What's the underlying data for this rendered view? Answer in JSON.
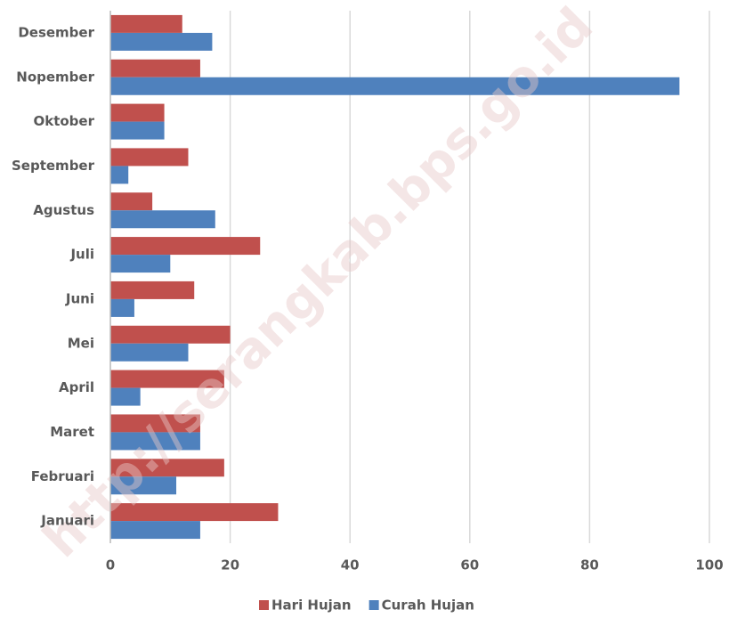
{
  "chart_data": {
    "type": "hbar",
    "categories": [
      "Januari",
      "Februari",
      "Maret",
      "April",
      "Mei",
      "Juni",
      "Juli",
      "Agustus",
      "September",
      "Oktober",
      "Nopember",
      "Desember"
    ],
    "series": [
      {
        "name": "Hari Hujan",
        "color": "#c0504d",
        "values": [
          28,
          19,
          15,
          19,
          20,
          14,
          25,
          7,
          13,
          9,
          15,
          12
        ]
      },
      {
        "name": "Curah Hujan",
        "color": "#4f81bd",
        "values": [
          15,
          11,
          15,
          5,
          13,
          4,
          10,
          17.5,
          3,
          9,
          95,
          17
        ]
      }
    ],
    "xlim": [
      0,
      100
    ],
    "xticks": [
      0,
      20,
      40,
      60,
      80,
      100
    ],
    "grid": true,
    "legend": "bottom",
    "watermark": "http://serangkab.bps.go.id"
  }
}
